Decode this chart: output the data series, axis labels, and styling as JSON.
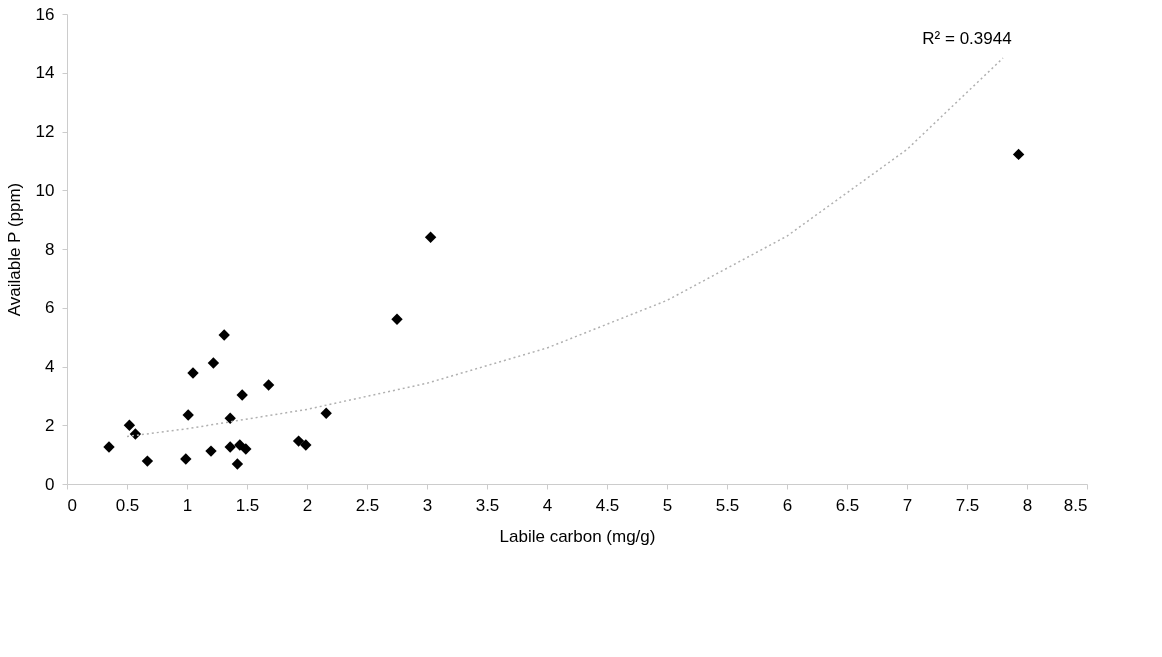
{
  "chart_data": {
    "type": "scatter",
    "xlabel": "Labile carbon (mg/g)",
    "ylabel": "Available P (ppm)",
    "xlim": [
      0,
      8.5
    ],
    "xticks": [
      0,
      0.5,
      1,
      1.5,
      2,
      2.5,
      3,
      3.5,
      4,
      4.5,
      5,
      5.5,
      6,
      6.5,
      7,
      7.5,
      8,
      8.5
    ],
    "ylim": [
      0,
      16
    ],
    "yticks": [
      0,
      2,
      4,
      6,
      8,
      10,
      12,
      14,
      16
    ],
    "grid": false,
    "annotations": [
      "R² = 0.3944"
    ],
    "series": [
      {
        "color": "#000000",
        "marker": "diamond",
        "x": [
          0.35,
          0.52,
          0.57,
          0.67,
          0.99,
          1.01,
          1.05,
          1.2,
          1.22,
          1.31,
          1.36,
          1.36,
          1.42,
          1.44,
          1.46,
          1.49,
          1.68,
          1.93,
          1.99,
          2.16,
          2.75,
          3.03,
          7.93
        ],
        "values": [
          1.26,
          2.0,
          1.7,
          0.78,
          0.85,
          2.35,
          3.78,
          1.12,
          4.12,
          5.07,
          2.24,
          1.26,
          0.68,
          1.33,
          3.03,
          1.19,
          3.37,
          1.46,
          1.33,
          2.41,
          5.61,
          8.4,
          11.22
        ]
      },
      {
        "type": "line",
        "color": "#b0b0b0",
        "line_style": "dotted",
        "x": [
          0.5,
          1,
          2,
          3,
          4,
          5,
          6,
          7,
          7.8
        ],
        "values": [
          1.62,
          1.88,
          2.54,
          3.43,
          4.63,
          6.25,
          8.44,
          11.39,
          14.5
        ]
      }
    ]
  }
}
